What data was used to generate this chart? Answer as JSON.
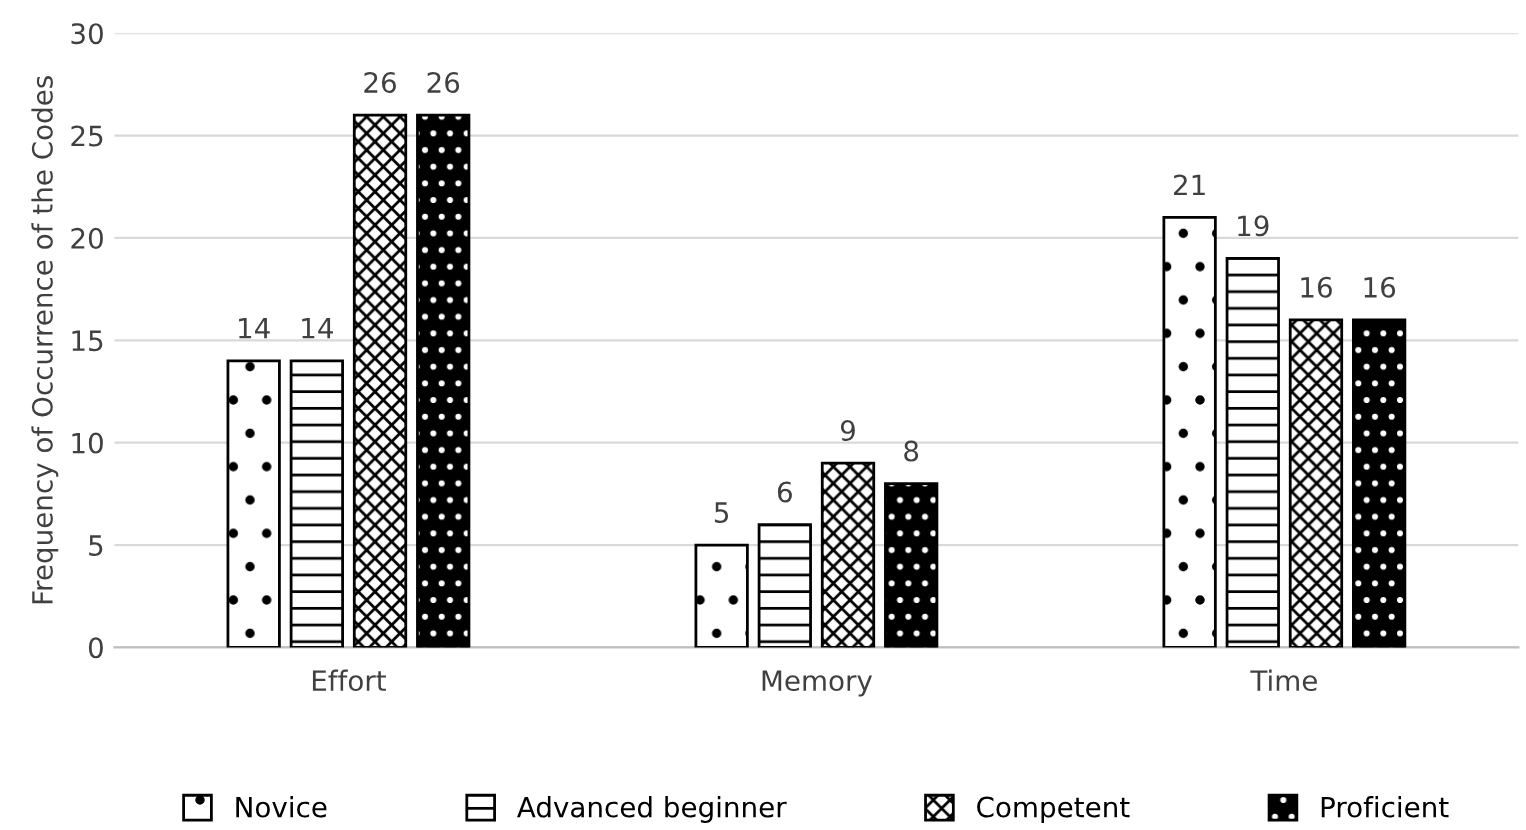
{
  "chart_data": {
    "type": "bar",
    "ylabel": "Frequency of Occurrence of the Codes",
    "categories": [
      "Effort",
      "Memory",
      "Time"
    ],
    "series": [
      {
        "name": "Novice",
        "color": "#000000",
        "values": [
          14,
          5,
          21
        ]
      },
      {
        "name": "Advanced beginner",
        "color": "#000000",
        "values": [
          14,
          6,
          19
        ]
      },
      {
        "name": "Competent",
        "color": "#000000",
        "values": [
          26,
          9,
          16
        ]
      },
      {
        "name": "Proficient",
        "color": "#000000",
        "values": [
          26,
          8,
          16
        ]
      }
    ],
    "ylim": [
      0,
      30
    ],
    "yticks": [
      0,
      5,
      10,
      15,
      20,
      25,
      30
    ],
    "grid": "y",
    "legend": "bottom",
    "data_labels": true
  }
}
